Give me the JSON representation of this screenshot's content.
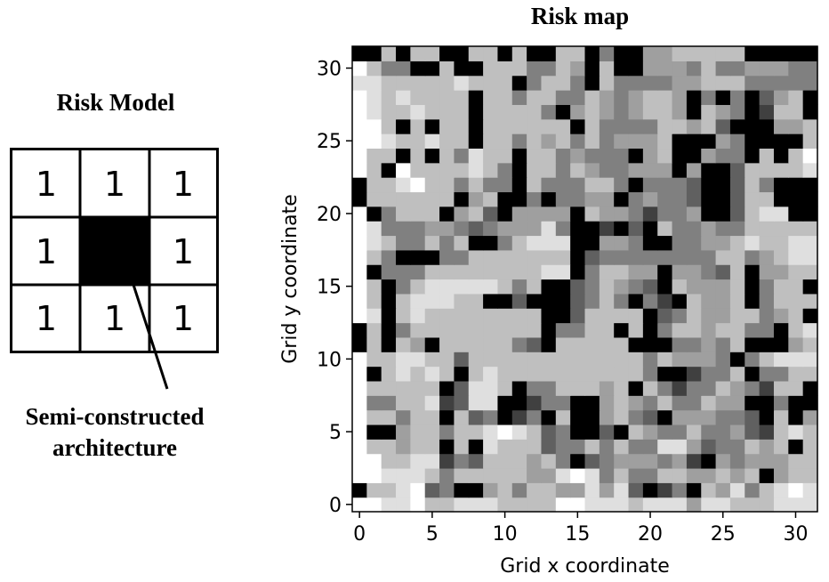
{
  "risk_model": {
    "title": "Risk Model",
    "grid": [
      [
        "1",
        "1",
        "1"
      ],
      [
        "1",
        "",
        "1"
      ],
      [
        "1",
        "1",
        "1"
      ]
    ],
    "center_fill": "#000000",
    "caption_line1": "Semi-constructed",
    "caption_line2": "architecture"
  },
  "chart_data": {
    "type": "heatmap",
    "title": "Risk map",
    "xlabel": "Grid x coordinate",
    "ylabel": "Grid y coordinate",
    "xlim": [
      -0.5,
      31.5
    ],
    "ylim": [
      31.5,
      -0.5
    ],
    "x_ticks": [
      0,
      5,
      10,
      15,
      20,
      25,
      30
    ],
    "y_ticks": [
      0,
      5,
      10,
      15,
      20,
      25,
      30
    ],
    "colormap": "gray_r",
    "value_range": [
      0,
      8
    ],
    "grid": false,
    "rows": [
      [
        0,
        0,
        1,
        1,
        0,
        2,
        2,
        1,
        1,
        1,
        2,
        2,
        2,
        2,
        0,
        0,
        1,
        1,
        1,
        2,
        1,
        1,
        1,
        3,
        1,
        1,
        2,
        2,
        2,
        1,
        1,
        1
      ],
      [
        8,
        2,
        2,
        1,
        0,
        5,
        4,
        8,
        8,
        3,
        2,
        4,
        2,
        2,
        3,
        3,
        1,
        3,
        1,
        5,
        8,
        6,
        4,
        8,
        2,
        3,
        1,
        4,
        2,
        1,
        0,
        1
      ],
      [
        0,
        0,
        1,
        1,
        1,
        2,
        4,
        2,
        2,
        2,
        2,
        2,
        3,
        3,
        1,
        0,
        1,
        4,
        2,
        4,
        4,
        2,
        2,
        3,
        3,
        2,
        3,
        2,
        8,
        3,
        2,
        2
      ],
      [
        0,
        0,
        2,
        2,
        1,
        1,
        6,
        4,
        5,
        2,
        2,
        2,
        3,
        2,
        4,
        8,
        5,
        4,
        3,
        3,
        3,
        4,
        3,
        6,
        8,
        3,
        4,
        3,
        3,
        3,
        2,
        2
      ],
      [
        0,
        2,
        2,
        3,
        2,
        2,
        8,
        2,
        8,
        1,
        2,
        2,
        2,
        5,
        4,
        4,
        2,
        4,
        2,
        4,
        4,
        1,
        1,
        3,
        5,
        4,
        4,
        2,
        3,
        2,
        8,
        2
      ],
      [
        0,
        8,
        8,
        3,
        2,
        2,
        4,
        2,
        2,
        1,
        0,
        1,
        2,
        5,
        4,
        8,
        8,
        5,
        8,
        2,
        3,
        4,
        4,
        2,
        4,
        4,
        3,
        5,
        6,
        2,
        1,
        2
      ],
      [
        0,
        2,
        2,
        4,
        2,
        2,
        8,
        2,
        5,
        4,
        8,
        6,
        4,
        8,
        2,
        8,
        8,
        3,
        2,
        4,
        5,
        8,
        3,
        3,
        3,
        4,
        4,
        5,
        8,
        2,
        8,
        3
      ],
      [
        0,
        4,
        4,
        2,
        2,
        1,
        6,
        5,
        1,
        1,
        8,
        8,
        6,
        4,
        4,
        8,
        8,
        3,
        2,
        3,
        4,
        2,
        4,
        4,
        2,
        3,
        3,
        8,
        8,
        4,
        8,
        8
      ],
      [
        0,
        2,
        2,
        2,
        2,
        2,
        8,
        5,
        1,
        1,
        2,
        8,
        4,
        4,
        2,
        2,
        2,
        3,
        2,
        8,
        2,
        4,
        6,
        4,
        4,
        2,
        3,
        4,
        6,
        2,
        2,
        8
      ],
      [
        0,
        8,
        2,
        1,
        2,
        1,
        2,
        8,
        2,
        1,
        2,
        2,
        2,
        2,
        2,
        2,
        2,
        2,
        2,
        2,
        4,
        8,
        8,
        6,
        4,
        4,
        2,
        8,
        4,
        4,
        2,
        2
      ],
      [
        0,
        2,
        2,
        1,
        1,
        2,
        2,
        5,
        2,
        2,
        2,
        2,
        2,
        2,
        2,
        2,
        2,
        2,
        2,
        2,
        4,
        2,
        3,
        3,
        3,
        4,
        8,
        4,
        2,
        1,
        1,
        1
      ],
      [
        8,
        2,
        8,
        2,
        3,
        8,
        2,
        2,
        2,
        2,
        2,
        4,
        5,
        8,
        2,
        2,
        2,
        2,
        2,
        8,
        8,
        8,
        4,
        4,
        3,
        4,
        2,
        8,
        8,
        8,
        3,
        2
      ],
      [
        8,
        2,
        8,
        4,
        2,
        2,
        2,
        2,
        2,
        2,
        2,
        2,
        2,
        8,
        4,
        4,
        2,
        2,
        8,
        2,
        8,
        4,
        2,
        2,
        3,
        2,
        2,
        4,
        4,
        8,
        2,
        1
      ],
      [
        0,
        1,
        8,
        2,
        1,
        2,
        2,
        2,
        2,
        2,
        2,
        2,
        2,
        8,
        8,
        5,
        2,
        2,
        2,
        2,
        8,
        5,
        4,
        2,
        3,
        3,
        2,
        2,
        4,
        3,
        2,
        8
      ],
      [
        0,
        2,
        8,
        2,
        1,
        1,
        1,
        2,
        2,
        8,
        8,
        5,
        8,
        8,
        8,
        5,
        4,
        2,
        4,
        8,
        4,
        6,
        8,
        2,
        3,
        3,
        2,
        8,
        4,
        2,
        2,
        2
      ],
      [
        0,
        2,
        8,
        4,
        2,
        1,
        1,
        1,
        1,
        1,
        2,
        4,
        2,
        8,
        8,
        5,
        4,
        2,
        3,
        4,
        5,
        8,
        2,
        3,
        3,
        3,
        2,
        8,
        4,
        2,
        2,
        8
      ],
      [
        0,
        8,
        4,
        4,
        4,
        2,
        2,
        2,
        2,
        2,
        2,
        2,
        2,
        1,
        1,
        8,
        4,
        2,
        2,
        3,
        3,
        8,
        3,
        3,
        4,
        5,
        2,
        8,
        3,
        3,
        2,
        2
      ],
      [
        0,
        2,
        4,
        8,
        8,
        8,
        4,
        4,
        2,
        2,
        2,
        2,
        2,
        2,
        2,
        8,
        5,
        4,
        4,
        4,
        4,
        4,
        4,
        4,
        4,
        2,
        2,
        4,
        3,
        2,
        1,
        1
      ],
      [
        0,
        1,
        2,
        4,
        4,
        2,
        4,
        2,
        8,
        8,
        4,
        2,
        1,
        1,
        1,
        8,
        8,
        3,
        3,
        4,
        8,
        8,
        4,
        4,
        3,
        3,
        2,
        1,
        2,
        2,
        1,
        1
      ],
      [
        0,
        1,
        4,
        4,
        4,
        3,
        3,
        4,
        5,
        4,
        3,
        3,
        3,
        1,
        4,
        8,
        8,
        6,
        8,
        5,
        8,
        2,
        4,
        4,
        3,
        4,
        4,
        2,
        2,
        2,
        2,
        2
      ],
      [
        0,
        8,
        4,
        2,
        2,
        2,
        8,
        3,
        2,
        5,
        8,
        3,
        3,
        3,
        3,
        8,
        2,
        3,
        3,
        4,
        6,
        4,
        4,
        3,
        8,
        8,
        5,
        2,
        1,
        1,
        8,
        8
      ],
      [
        8,
        2,
        2,
        2,
        2,
        2,
        2,
        8,
        3,
        2,
        8,
        8,
        4,
        8,
        4,
        4,
        3,
        3,
        8,
        4,
        3,
        4,
        4,
        5,
        8,
        8,
        5,
        2,
        2,
        8,
        8,
        8
      ],
      [
        8,
        2,
        2,
        1,
        0,
        2,
        2,
        4,
        2,
        4,
        4,
        8,
        2,
        4,
        4,
        4,
        2,
        2,
        4,
        8,
        4,
        4,
        4,
        5,
        8,
        8,
        5,
        2,
        4,
        8,
        8,
        8
      ],
      [
        0,
        2,
        8,
        0,
        2,
        2,
        2,
        2,
        1,
        2,
        4,
        8,
        2,
        2,
        4,
        2,
        3,
        4,
        4,
        3,
        3,
        3,
        8,
        3,
        8,
        8,
        5,
        2,
        2,
        2,
        2,
        1
      ],
      [
        0,
        2,
        2,
        8,
        2,
        8,
        2,
        4,
        1,
        2,
        2,
        8,
        2,
        2,
        4,
        3,
        4,
        4,
        4,
        8,
        3,
        2,
        8,
        8,
        3,
        4,
        4,
        8,
        2,
        8,
        2,
        0
      ],
      [
        0,
        0,
        1,
        2,
        2,
        1,
        2,
        2,
        8,
        2,
        2,
        4,
        2,
        3,
        2,
        4,
        2,
        4,
        3,
        3,
        3,
        2,
        8,
        8,
        8,
        3,
        4,
        8,
        8,
        8,
        8,
        2
      ],
      [
        0,
        0,
        2,
        8,
        2,
        8,
        2,
        2,
        8,
        2,
        2,
        2,
        2,
        2,
        2,
        8,
        2,
        4,
        4,
        4,
        4,
        2,
        2,
        3,
        2,
        5,
        8,
        8,
        8,
        3,
        3,
        2
      ],
      [
        0,
        1,
        2,
        2,
        1,
        2,
        2,
        2,
        8,
        2,
        2,
        2,
        2,
        4,
        8,
        3,
        2,
        3,
        4,
        3,
        2,
        2,
        3,
        8,
        2,
        3,
        4,
        8,
        6,
        2,
        2,
        8
      ],
      [
        0,
        1,
        2,
        1,
        2,
        2,
        2,
        2,
        8,
        2,
        2,
        4,
        2,
        2,
        4,
        4,
        2,
        3,
        4,
        3,
        2,
        2,
        3,
        8,
        4,
        8,
        4,
        8,
        5,
        3,
        2,
        8
      ],
      [
        1,
        1,
        2,
        2,
        2,
        2,
        2,
        1,
        2,
        2,
        2,
        8,
        4,
        2,
        2,
        4,
        8,
        2,
        4,
        4,
        4,
        4,
        3,
        3,
        2,
        2,
        2,
        4,
        4,
        4,
        4,
        4
      ],
      [
        0,
        2,
        4,
        4,
        8,
        8,
        2,
        8,
        8,
        2,
        2,
        2,
        4,
        4,
        2,
        3,
        8,
        2,
        8,
        8,
        3,
        3,
        3,
        4,
        2,
        4,
        4,
        3,
        3,
        3,
        4,
        4
      ],
      [
        8,
        8,
        2,
        8,
        2,
        2,
        8,
        8,
        2,
        2,
        8,
        2,
        8,
        8,
        2,
        2,
        8,
        4,
        8,
        8,
        3,
        3,
        2,
        2,
        2,
        2,
        2,
        8,
        8,
        8,
        8,
        8
      ]
    ]
  }
}
